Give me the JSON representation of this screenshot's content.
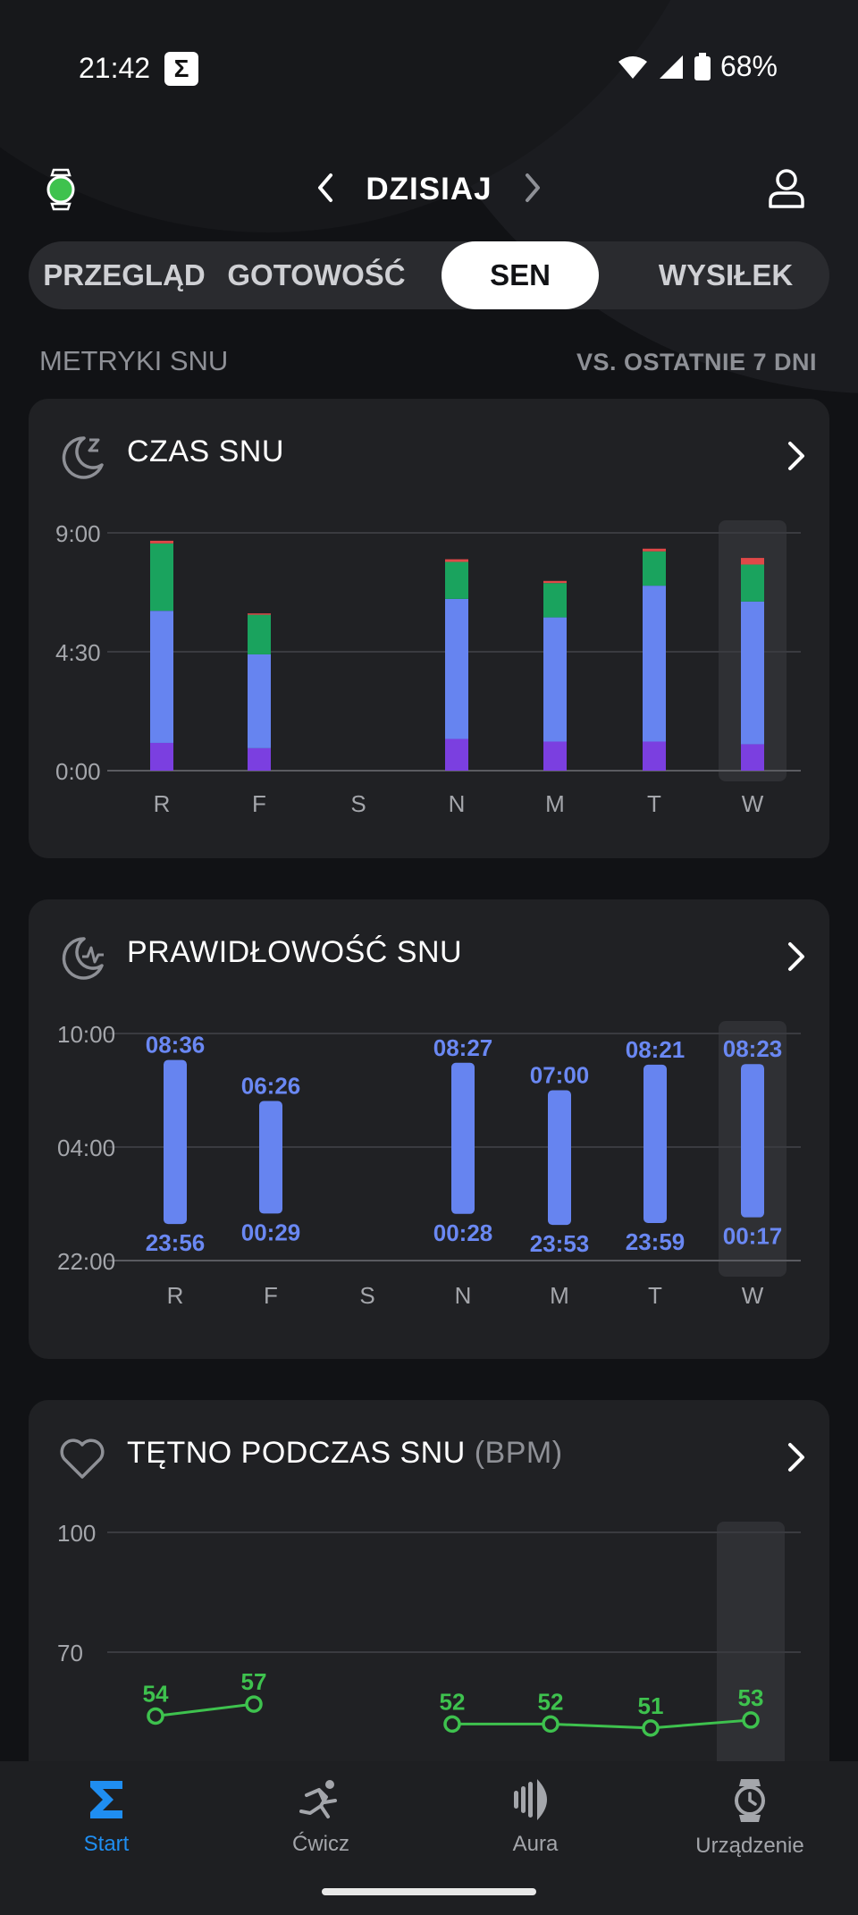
{
  "status_bar": {
    "time": "21:42",
    "badge": "Σ",
    "battery": "68%"
  },
  "header": {
    "date_label": "DZISIAJ"
  },
  "tabs": [
    {
      "label": "PRZEGLĄD",
      "active": false
    },
    {
      "label": "GOTOWOŚĆ",
      "active": false
    },
    {
      "label": "SEN",
      "active": true
    },
    {
      "label": "WYSIŁEK",
      "active": false
    }
  ],
  "section": {
    "title": "METRYKI SNU",
    "compare": "VS. OSTATNIE 7 DNI"
  },
  "colors": {
    "accent": "#1f8ef1",
    "deep": "#7b3fe0",
    "light": "#6684f0",
    "rem": "#1aa35e",
    "awake": "#e04848",
    "hr_line": "#3ec24e"
  },
  "cards": {
    "sleep_time": {
      "title": "CZAS SNU",
      "icon": "moon-zzz-icon"
    },
    "sleep_regularity": {
      "title": "PRAWIDŁOWOŚĆ SNU",
      "icon": "moon-pulse-icon"
    },
    "sleep_hr": {
      "title": "TĘTNO PODCZAS SNU",
      "unit": "(BPM)",
      "icon": "heart-icon"
    }
  },
  "chart_data": [
    {
      "type": "bar",
      "title": "CZAS SNU",
      "categories": [
        "R",
        "F",
        "S",
        "N",
        "M",
        "T",
        "W"
      ],
      "yticks": [
        "0:00",
        "4:30",
        "9:00"
      ],
      "ylim": [
        0,
        9
      ],
      "highlight_category": "W",
      "stacked": true,
      "series": [
        {
          "key": "deep",
          "values": [
            1.05,
            0.85,
            0,
            1.2,
            1.1,
            1.1,
            1.0
          ]
        },
        {
          "key": "light",
          "values": [
            5.0,
            3.55,
            0,
            5.3,
            4.7,
            5.9,
            5.4
          ]
        },
        {
          "key": "rem",
          "values": [
            2.55,
            1.5,
            0,
            1.4,
            1.3,
            1.3,
            1.4
          ]
        },
        {
          "key": "awake",
          "values": [
            0.1,
            0.05,
            0,
            0.1,
            0.08,
            0.1,
            0.25
          ]
        }
      ]
    },
    {
      "type": "bar",
      "title": "PRAWIDŁOWOŚĆ SNU",
      "categories": [
        "R",
        "F",
        "S",
        "N",
        "M",
        "T",
        "W"
      ],
      "yticks": [
        "22:00",
        "04:00",
        "10:00"
      ],
      "ylim": [
        "22:00",
        "10:00"
      ],
      "highlight_category": "W",
      "ranges": [
        {
          "category": "R",
          "start": "23:56",
          "end": "08:36"
        },
        {
          "category": "F",
          "start": "00:29",
          "end": "06:26"
        },
        {
          "category": "S",
          "start": null,
          "end": null
        },
        {
          "category": "N",
          "start": "00:28",
          "end": "08:27"
        },
        {
          "category": "M",
          "start": "23:53",
          "end": "07:00"
        },
        {
          "category": "T",
          "start": "23:59",
          "end": "08:21"
        },
        {
          "category": "W",
          "start": "00:17",
          "end": "08:23"
        }
      ]
    },
    {
      "type": "line",
      "title": "TĘTNO PODCZAS SNU",
      "ylabel": "(BPM)",
      "categories": [
        "R",
        "F",
        "S",
        "N",
        "M",
        "T",
        "W"
      ],
      "yticks": [
        "70",
        "100"
      ],
      "ylim": [
        40,
        100
      ],
      "highlight_category": "W",
      "series": [
        {
          "values": [
            54,
            57,
            null,
            52,
            52,
            51,
            53
          ]
        }
      ]
    }
  ],
  "bottom_nav": [
    {
      "label": "Start",
      "icon": "sigma-icon",
      "active": true
    },
    {
      "label": "Ćwicz",
      "icon": "running-icon",
      "active": false
    },
    {
      "label": "Aura",
      "icon": "aura-icon",
      "active": false
    },
    {
      "label": "Urządzenie",
      "icon": "watch-icon",
      "active": false
    }
  ]
}
